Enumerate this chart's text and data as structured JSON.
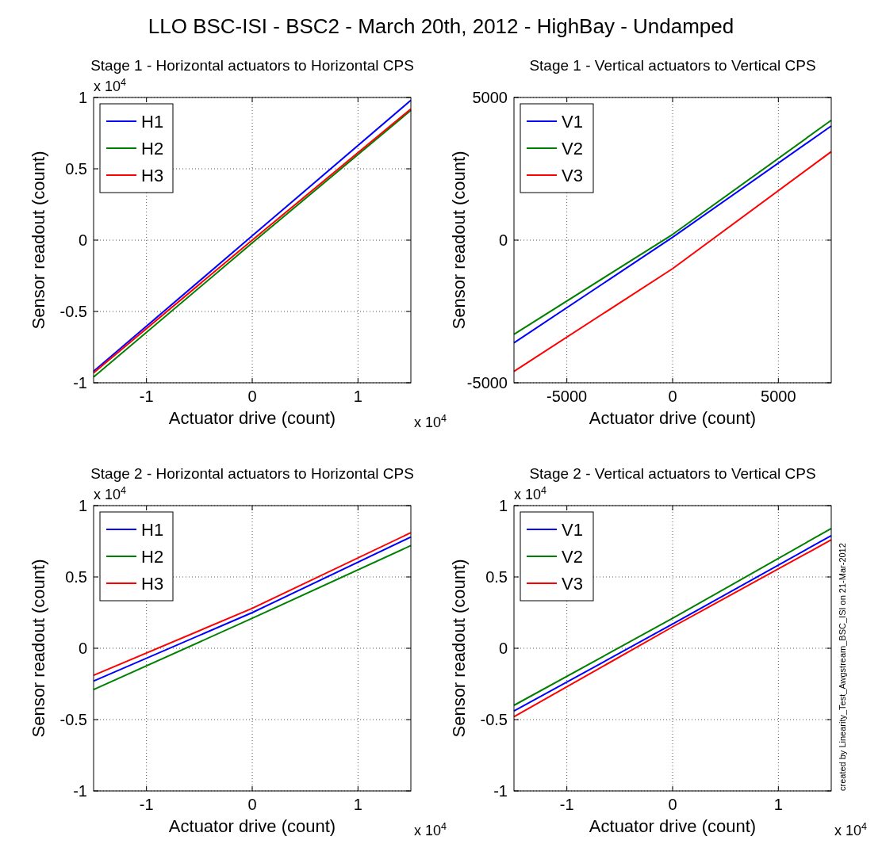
{
  "chart_data": [
    {
      "type": "line",
      "title": "LLO BSC-ISI - BSC2 - March 20th, 2012 - HighBay - Undamped",
      "subtitle": "Stage 1 - Horizontal actuators to Horizontal CPS",
      "xlabel": "Actuator drive (count)",
      "ylabel": "Sensor readout (count)",
      "x": [
        -1.5,
        0,
        1.5
      ],
      "series": [
        {
          "name": "H1",
          "color": "#0000ff",
          "values": [
            -0.92,
            0.03,
            0.98
          ]
        },
        {
          "name": "H2",
          "color": "#008000",
          "values": [
            -0.96,
            -0.02,
            0.91
          ]
        },
        {
          "name": "H3",
          "color": "#ff0000",
          "values": [
            -0.93,
            0,
            0.92
          ]
        }
      ],
      "xlim": [
        -1.5,
        1.5
      ],
      "xticks": [
        -1,
        0,
        1
      ],
      "ylim": [
        -1,
        1
      ],
      "yticks": [
        -1,
        -0.5,
        0,
        0.5,
        1
      ],
      "annotations": [
        "x 10$^{4}$",
        "x 10$^{4}$"
      ],
      "grid": true,
      "legend": "top left"
    },
    {
      "type": "line",
      "title": "Stage 1 - Vertical actuators to Vertical CPS",
      "xlabel": "Actuator drive (count)",
      "ylabel": "Sensor readout (count)",
      "x": [
        -7500,
        0,
        7500
      ],
      "series": [
        {
          "name": "V1",
          "color": "#0000ff",
          "values": [
            -3600,
            100,
            4000
          ]
        },
        {
          "name": "V2",
          "color": "#008000",
          "values": [
            -3300,
            200,
            4200
          ]
        },
        {
          "name": "V3",
          "color": "#ff0000",
          "values": [
            -4600,
            -1000,
            3100
          ]
        }
      ],
      "xlim": [
        -7500,
        7500
      ],
      "xticks": [
        -5000,
        0,
        5000
      ],
      "ylim": [
        -5000,
        5000
      ],
      "yticks": [
        -5000,
        0,
        5000
      ],
      "grid": true,
      "legend": "top left"
    },
    {
      "type": "line",
      "title": "Stage 2 - Horizontal actuators to Horizontal CPS",
      "xlabel": "Actuator drive (count)",
      "ylabel": "Sensor readout (count)",
      "x": [
        -1.5,
        0,
        1.5
      ],
      "series": [
        {
          "name": "H1",
          "color": "#0000ff",
          "values": [
            -0.23,
            0.25,
            0.78
          ]
        },
        {
          "name": "H2",
          "color": "#008000",
          "values": [
            -0.29,
            0.21,
            0.72
          ]
        },
        {
          "name": "H3",
          "color": "#ff0000",
          "values": [
            -0.19,
            0.28,
            0.81
          ]
        }
      ],
      "xlim": [
        -1.5,
        1.5
      ],
      "xticks": [
        -1,
        0,
        1
      ],
      "ylim": [
        -1,
        1
      ],
      "yticks": [
        -1,
        -0.5,
        0,
        0.5,
        1
      ],
      "annotations": [
        "x 10$^{4}$",
        "x 10$^{4}$"
      ],
      "grid": true,
      "legend": "top left"
    },
    {
      "type": "line",
      "title": "Stage 2 - Vertical actuators to Vertical CPS",
      "xlabel": "Actuator drive (count)",
      "ylabel": "Sensor readout (count)",
      "x": [
        -1.5,
        0,
        1.5
      ],
      "series": [
        {
          "name": "V1",
          "color": "#0000ff",
          "values": [
            -0.44,
            0.17,
            0.79
          ]
        },
        {
          "name": "V2",
          "color": "#008000",
          "values": [
            -0.4,
            0.21,
            0.84
          ]
        },
        {
          "name": "V3",
          "color": "#ff0000",
          "values": [
            -0.48,
            0.15,
            0.76
          ]
        }
      ],
      "xlim": [
        -1.5,
        1.5
      ],
      "xticks": [
        -1,
        0,
        1
      ],
      "ylim": [
        -1,
        1
      ],
      "yticks": [
        -1,
        -0.5,
        0,
        0.5,
        1
      ],
      "annotations": [
        "x 10$^{4}$",
        "x 10$^{4}$",
        "created by Linearity_Test_Awgstream_BSC_ISI on 21-Mar-2012"
      ],
      "grid": true,
      "legend": "top left"
    }
  ]
}
